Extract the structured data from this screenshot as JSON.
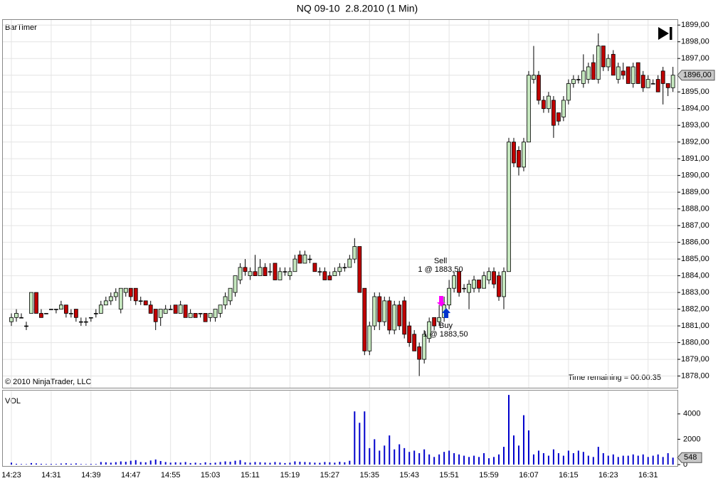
{
  "chart_data": {
    "type": "candlestick",
    "title": "NQ 09-10  2.8.2010 (1 Min)",
    "indicator_label": "BarTimer",
    "copyright": "© 2010 NinjaTrader, LLC",
    "timer_text": "Time remaining = 00:00:35",
    "volume_label": "VOL",
    "up_color": "#c6e8bf",
    "down_color": "#c00000",
    "volume_color": "#0000cc",
    "grid": true,
    "categories": [
      "14:23",
      null,
      null,
      null,
      null,
      null,
      null,
      null,
      "14:31",
      null,
      null,
      null,
      null,
      null,
      null,
      null,
      "14:39",
      null,
      null,
      null,
      null,
      null,
      null,
      null,
      "14:47",
      null,
      null,
      null,
      null,
      null,
      null,
      null,
      "14:55",
      null,
      null,
      null,
      null,
      null,
      null,
      null,
      "15:03",
      null,
      null,
      null,
      null,
      null,
      null,
      null,
      "15:11",
      null,
      null,
      null,
      null,
      null,
      null,
      null,
      "15:19",
      null,
      null,
      null,
      null,
      null,
      null,
      null,
      "15:27",
      null,
      null,
      null,
      null,
      null,
      null,
      null,
      "15:35",
      null,
      null,
      null,
      null,
      null,
      null,
      null,
      "15:43",
      null,
      null,
      null,
      null,
      null,
      null,
      null,
      "15:51",
      null,
      null,
      null,
      null,
      null,
      null,
      null,
      "15:59",
      null,
      null,
      null,
      null,
      null,
      null,
      null,
      "16:07",
      null,
      null,
      null,
      null,
      null,
      null,
      null,
      "16:15",
      null,
      null,
      null,
      null,
      null,
      null,
      null,
      "16:23",
      null,
      null,
      null,
      null,
      null,
      null,
      null,
      "16:31",
      null,
      null,
      null,
      null,
      null
    ],
    "open": [
      1881.25,
      1881.5,
      1881.5,
      1881.0,
      1881.75,
      1883.0,
      1881.75,
      1881.75,
      1882.0,
      1882.0,
      1882.0,
      1882.25,
      1881.75,
      1882.0,
      1881.25,
      1881.25,
      1881.5,
      1881.75,
      1881.75,
      1882.25,
      1882.5,
      1882.75,
      1882.0,
      1883.0,
      1883.25,
      1883.25,
      1882.5,
      1882.5,
      1882.25,
      1882.0,
      1881.5,
      1881.75,
      1882.0,
      1882.25,
      1881.75,
      1882.25,
      1881.5,
      1881.75,
      1881.75,
      1881.75,
      1881.5,
      1881.5,
      1881.75,
      1882.25,
      1882.5,
      1883.0,
      1883.75,
      1884.5,
      1884.0,
      1884.25,
      1884.0,
      1884.5,
      1884.25,
      1884.75,
      1883.75,
      1884.25,
      1884.0,
      1884.25,
      1885.25,
      1884.75,
      1885.0,
      1884.75,
      1884.25,
      1884.25,
      1884.0,
      1884.0,
      1884.25,
      1884.5,
      1884.5,
      1885.0,
      1885.75,
      1883.25,
      1879.5,
      1881.0,
      1882.75,
      1881.25,
      1882.5,
      1880.75,
      1882.25,
      1882.5,
      1881.0,
      1880.5,
      1879.75,
      1879.0,
      1880.25,
      1881.5,
      1881.25,
      1881.5,
      1882.25,
      1883.25,
      1884.25,
      1883.25,
      1883.0,
      1883.25,
      1883.75,
      1883.25,
      1883.75,
      1884.25,
      1884.0,
      1882.75,
      1884.25,
      1892.0,
      1891.5,
      1890.5,
      1892.0,
      1895.75,
      1896.0,
      1894.5,
      1894.0,
      1894.5,
      1893.75,
      1893.5,
      1894.5,
      1895.5,
      1895.75,
      1895.5,
      1895.75,
      1896.75,
      1895.75,
      1897.75,
      1896.5,
      1897.25,
      1895.75,
      1896.25,
      1896.5,
      1895.5,
      1896.75,
      1896.0,
      1895.25,
      1895.5,
      1895.75,
      1896.25,
      1895.5,
      1895.25
    ],
    "high": [
      1881.75,
      1882.0,
      1881.75,
      1881.25,
      1883.0,
      1883.0,
      1882.0,
      1881.75,
      1882.0,
      1882.0,
      1882.5,
      1882.25,
      1882.0,
      1882.0,
      1881.5,
      1881.5,
      1881.5,
      1882.0,
      1882.5,
      1882.75,
      1883.0,
      1883.25,
      1883.25,
      1883.25,
      1883.25,
      1883.25,
      1882.75,
      1882.5,
      1882.5,
      1882.0,
      1882.0,
      1882.25,
      1882.25,
      1882.25,
      1882.5,
      1882.25,
      1882.0,
      1881.75,
      1881.75,
      1881.75,
      1881.75,
      1882.0,
      1882.25,
      1883.0,
      1883.25,
      1884.0,
      1884.75,
      1885.0,
      1884.5,
      1885.25,
      1885.0,
      1884.75,
      1884.75,
      1884.75,
      1884.5,
      1884.5,
      1884.5,
      1885.25,
      1885.5,
      1885.5,
      1885.25,
      1884.75,
      1884.5,
      1884.5,
      1884.25,
      1884.5,
      1884.75,
      1884.75,
      1885.25,
      1886.25,
      1885.75,
      1883.25,
      1881.25,
      1883.0,
      1883.0,
      1882.75,
      1882.75,
      1882.5,
      1882.5,
      1882.75,
      1881.25,
      1880.75,
      1880.0,
      1880.75,
      1881.5,
      1881.5,
      1882.25,
      1882.75,
      1883.75,
      1884.25,
      1884.25,
      1883.5,
      1883.75,
      1884.0,
      1883.75,
      1884.25,
      1884.5,
      1884.5,
      1884.25,
      1884.5,
      1892.25,
      1892.25,
      1891.75,
      1892.25,
      1896.25,
      1897.75,
      1896.25,
      1894.75,
      1895.0,
      1894.75,
      1893.75,
      1894.75,
      1895.75,
      1896.0,
      1896.0,
      1897.25,
      1896.75,
      1897.25,
      1898.5,
      1897.75,
      1897.25,
      1897.5,
      1896.75,
      1896.75,
      1896.5,
      1896.75,
      1896.75,
      1896.25,
      1896.0,
      1895.75,
      1896.0,
      1896.5,
      1895.5,
      1896.5
    ],
    "low": [
      1881.0,
      1881.25,
      1881.5,
      1880.75,
      1881.75,
      1881.75,
      1881.5,
      1881.75,
      1882.0,
      1881.75,
      1882.0,
      1881.5,
      1881.5,
      1881.25,
      1881.0,
      1881.0,
      1881.25,
      1881.5,
      1881.75,
      1882.25,
      1882.25,
      1882.5,
      1881.75,
      1882.75,
      1882.5,
      1882.25,
      1882.25,
      1882.25,
      1881.75,
      1880.75,
      1881.0,
      1881.75,
      1882.0,
      1881.75,
      1881.75,
      1881.5,
      1881.5,
      1881.5,
      1881.5,
      1881.25,
      1881.25,
      1881.25,
      1881.5,
      1882.0,
      1882.25,
      1882.75,
      1883.5,
      1884.0,
      1883.75,
      1884.0,
      1884.0,
      1884.0,
      1884.0,
      1883.75,
      1883.75,
      1884.0,
      1883.75,
      1884.25,
      1884.75,
      1884.75,
      1884.75,
      1884.25,
      1884.0,
      1883.75,
      1883.75,
      1884.0,
      1884.0,
      1884.25,
      1884.5,
      1884.75,
      1883.0,
      1879.25,
      1879.25,
      1880.75,
      1880.75,
      1881.0,
      1880.5,
      1880.5,
      1880.75,
      1880.25,
      1879.75,
      1879.5,
      1878.0,
      1878.75,
      1880.0,
      1880.75,
      1881.0,
      1881.25,
      1882.0,
      1883.0,
      1882.75,
      1883.0,
      1882.0,
      1883.0,
      1883.0,
      1883.25,
      1883.5,
      1883.25,
      1882.5,
      1882.0,
      1884.25,
      1890.5,
      1890.0,
      1890.25,
      1892.0,
      1895.5,
      1894.25,
      1893.75,
      1893.75,
      1892.25,
      1893.0,
      1893.25,
      1894.25,
      1895.25,
      1895.5,
      1895.25,
      1895.5,
      1895.75,
      1895.5,
      1896.25,
      1896.25,
      1896.0,
      1895.5,
      1895.75,
      1895.5,
      1895.25,
      1895.5,
      1895.0,
      1895.25,
      1895.5,
      1895.0,
      1894.25,
      1894.75,
      1895.0
    ],
    "close": [
      1881.5,
      1881.75,
      1881.5,
      1881.0,
      1883.0,
      1881.75,
      1881.5,
      1881.75,
      1882.0,
      1882.0,
      1882.25,
      1881.75,
      1881.75,
      1881.5,
      1881.25,
      1881.25,
      1881.5,
      1881.75,
      1882.25,
      1882.5,
      1882.75,
      1883.0,
      1883.25,
      1883.25,
      1882.75,
      1882.5,
      1882.5,
      1882.25,
      1881.75,
      1881.25,
      1882.0,
      1882.0,
      1882.0,
      1881.75,
      1882.25,
      1881.5,
      1881.75,
      1881.5,
      1881.75,
      1881.25,
      1881.75,
      1882.0,
      1882.25,
      1882.75,
      1883.25,
      1884.0,
      1884.5,
      1884.25,
      1884.25,
      1884.0,
      1884.5,
      1884.0,
      1884.25,
      1883.75,
      1884.25,
      1884.25,
      1884.25,
      1885.0,
      1884.75,
      1885.25,
      1885.0,
      1884.25,
      1884.25,
      1883.75,
      1883.75,
      1884.25,
      1884.5,
      1884.5,
      1885.0,
      1885.75,
      1883.0,
      1879.5,
      1881.0,
      1882.75,
      1881.25,
      1882.5,
      1880.75,
      1882.25,
      1881.0,
      1880.5,
      1880.0,
      1879.5,
      1879.0,
      1880.5,
      1881.25,
      1881.0,
      1881.5,
      1882.25,
      1883.25,
      1884.0,
      1883.0,
      1883.25,
      1883.5,
      1883.75,
      1883.25,
      1884.0,
      1884.25,
      1883.5,
      1882.75,
      1884.25,
      1892.0,
      1890.75,
      1890.5,
      1892.0,
      1896.0,
      1896.0,
      1894.5,
      1894.0,
      1894.75,
      1893.0,
      1893.25,
      1894.5,
      1895.5,
      1895.75,
      1895.75,
      1896.25,
      1896.5,
      1895.75,
      1897.75,
      1896.5,
      1897.0,
      1896.0,
      1896.5,
      1896.0,
      1895.5,
      1896.5,
      1895.5,
      1895.25,
      1895.75,
      1895.5,
      1895.0,
      1895.5,
      1895.25,
      1896.0
    ],
    "volume": [
      150,
      60,
      40,
      30,
      120,
      90,
      60,
      40,
      50,
      40,
      80,
      100,
      60,
      90,
      40,
      30,
      50,
      40,
      200,
      180,
      150,
      190,
      250,
      220,
      300,
      350,
      200,
      180,
      320,
      400,
      280,
      200,
      150,
      180,
      160,
      200,
      120,
      150,
      100,
      180,
      120,
      150,
      200,
      250,
      220,
      300,
      350,
      180,
      150,
      200,
      180,
      160,
      140,
      200,
      160,
      120,
      150,
      250,
      220,
      200,
      180,
      150,
      140,
      200,
      180,
      150,
      220,
      180,
      300,
      4200,
      3300,
      4200,
      1300,
      2000,
      1100,
      1500,
      2300,
      1200,
      1600,
      1300,
      1000,
      1100,
      900,
      1200,
      800,
      600,
      800,
      1000,
      1100,
      900,
      800,
      700,
      600,
      700,
      600,
      900,
      500,
      600,
      800,
      1400,
      5500,
      2300,
      1500,
      3900,
      2700,
      800,
      1100,
      900,
      700,
      1200,
      900,
      700,
      1100,
      900,
      1100,
      1000,
      700,
      600,
      1400,
      900,
      700,
      800,
      600,
      700,
      700,
      800,
      700,
      800,
      600,
      700,
      800,
      600,
      900,
      548
    ],
    "ylim": [
      1877.3,
      1899.35
    ],
    "yticks": [
      {
        "value": 1878,
        "label": "1878,00"
      },
      {
        "value": 1879,
        "label": "1879,00"
      },
      {
        "value": 1880,
        "label": "1880,00"
      },
      {
        "value": 1881,
        "label": "1881,00"
      },
      {
        "value": 1882,
        "label": "1882,00"
      },
      {
        "value": 1883,
        "label": "1883,00"
      },
      {
        "value": 1884,
        "label": "1884,00"
      },
      {
        "value": 1885,
        "label": "1885,00"
      },
      {
        "value": 1886,
        "label": "1886,00"
      },
      {
        "value": 1887,
        "label": "1887,00"
      },
      {
        "value": 1888,
        "label": "1888,00"
      },
      {
        "value": 1889,
        "label": "1889,00"
      },
      {
        "value": 1890,
        "label": "1890,00"
      },
      {
        "value": 1891,
        "label": "1891,00"
      },
      {
        "value": 1892,
        "label": "1892,00"
      },
      {
        "value": 1893,
        "label": "1893,00"
      },
      {
        "value": 1894,
        "label": "1894,00"
      },
      {
        "value": 1895,
        "label": "1895,00"
      },
      {
        "value": 1896,
        "label": "1896,00"
      },
      {
        "value": 1897,
        "label": "1897,00"
      },
      {
        "value": 1898,
        "label": "1898,00"
      },
      {
        "value": 1899,
        "label": "1899,00"
      }
    ],
    "last_price": {
      "value": 1896,
      "label": "1896,00"
    },
    "volume_ylim": [
      0,
      5900
    ],
    "volume_ticks": [
      0,
      2000,
      4000
    ],
    "trades": [
      {
        "label": "Sell",
        "detail": "1 @ 1883,50"
      },
      {
        "label": "Buy",
        "detail": "1 @ 1883,50"
      }
    ]
  }
}
